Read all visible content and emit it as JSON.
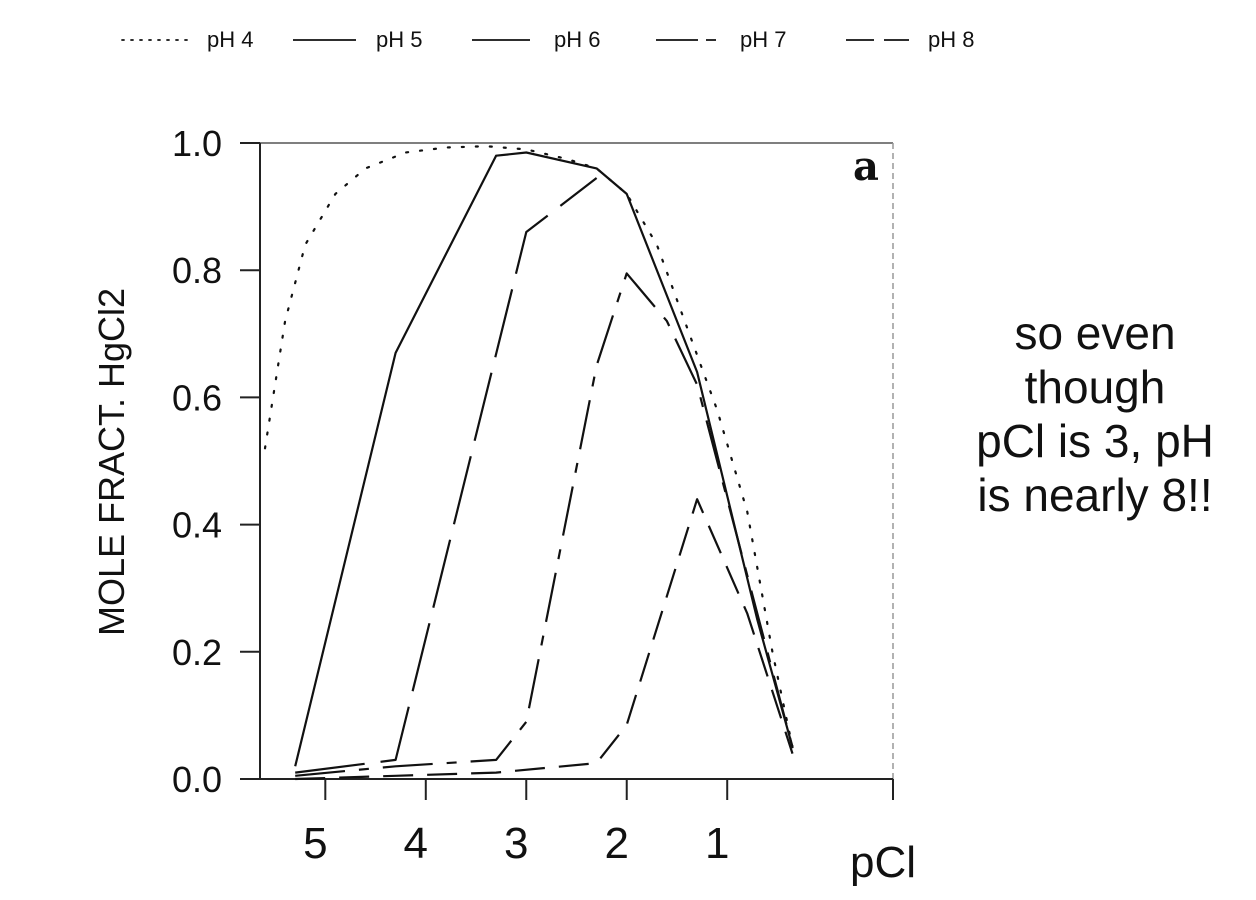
{
  "chart_data": {
    "type": "line",
    "ylabel": "MOLE FRACT. HgCl2",
    "xlabel": "pCl",
    "panel_label": "a",
    "xlim": [
      5.65,
      -0.65
    ],
    "ylim": [
      0,
      1
    ],
    "x_ticks": [
      5,
      4,
      3,
      2,
      1
    ],
    "y_ticks": [
      0.0,
      0.2,
      0.4,
      0.6,
      0.8,
      1.0
    ],
    "y_tick_labels": [
      "0.0",
      "0.2",
      "0.4",
      "0.6",
      "0.8",
      "1.0"
    ],
    "legend_position": "top",
    "series": [
      {
        "name": "pH 4",
        "dash": "dotted",
        "x": [
          5.6,
          5.4,
          5.2,
          4.9,
          4.6,
          4.2,
          3.8,
          3.4,
          3.0,
          2.6,
          2.3,
          2.0,
          1.7,
          1.4,
          1.1,
          0.8,
          0.55,
          0.35
        ],
        "y": [
          0.52,
          0.72,
          0.84,
          0.92,
          0.96,
          0.985,
          0.993,
          0.995,
          0.99,
          0.975,
          0.96,
          0.92,
          0.84,
          0.71,
          0.58,
          0.42,
          0.2,
          0.05
        ]
      },
      {
        "name": "pH 5",
        "dash": "solid",
        "x": [
          5.3,
          4.3,
          3.3,
          3.0,
          2.3,
          2.0,
          1.3,
          0.7,
          0.35
        ],
        "y": [
          0.02,
          0.67,
          0.98,
          0.985,
          0.96,
          0.92,
          0.64,
          0.25,
          0.05
        ]
      },
      {
        "name": "pH 6",
        "dash": "longdash",
        "x": [
          5.3,
          4.3,
          3.0,
          2.3
        ],
        "y": [
          0.01,
          0.03,
          0.86,
          0.945
        ]
      },
      {
        "name": "pH 7",
        "dash": "dashdot",
        "x": [
          5.3,
          4.3,
          3.3,
          3.0,
          2.3,
          2.0,
          1.6,
          1.3,
          0.8,
          0.35
        ],
        "y": [
          0.005,
          0.02,
          0.03,
          0.09,
          0.65,
          0.795,
          0.72,
          0.62,
          0.32,
          0.05
        ]
      },
      {
        "name": "pH 8",
        "dash": "dashed",
        "x": [
          5.3,
          4.3,
          3.3,
          2.3,
          2.0,
          1.3,
          0.8,
          0.35
        ],
        "y": [
          0.0,
          0.005,
          0.01,
          0.025,
          0.085,
          0.44,
          0.26,
          0.04
        ]
      }
    ]
  },
  "annotation": {
    "lines": [
      "so even",
      "though",
      "pCl is 3, pH",
      "is nearly 8!!"
    ]
  }
}
